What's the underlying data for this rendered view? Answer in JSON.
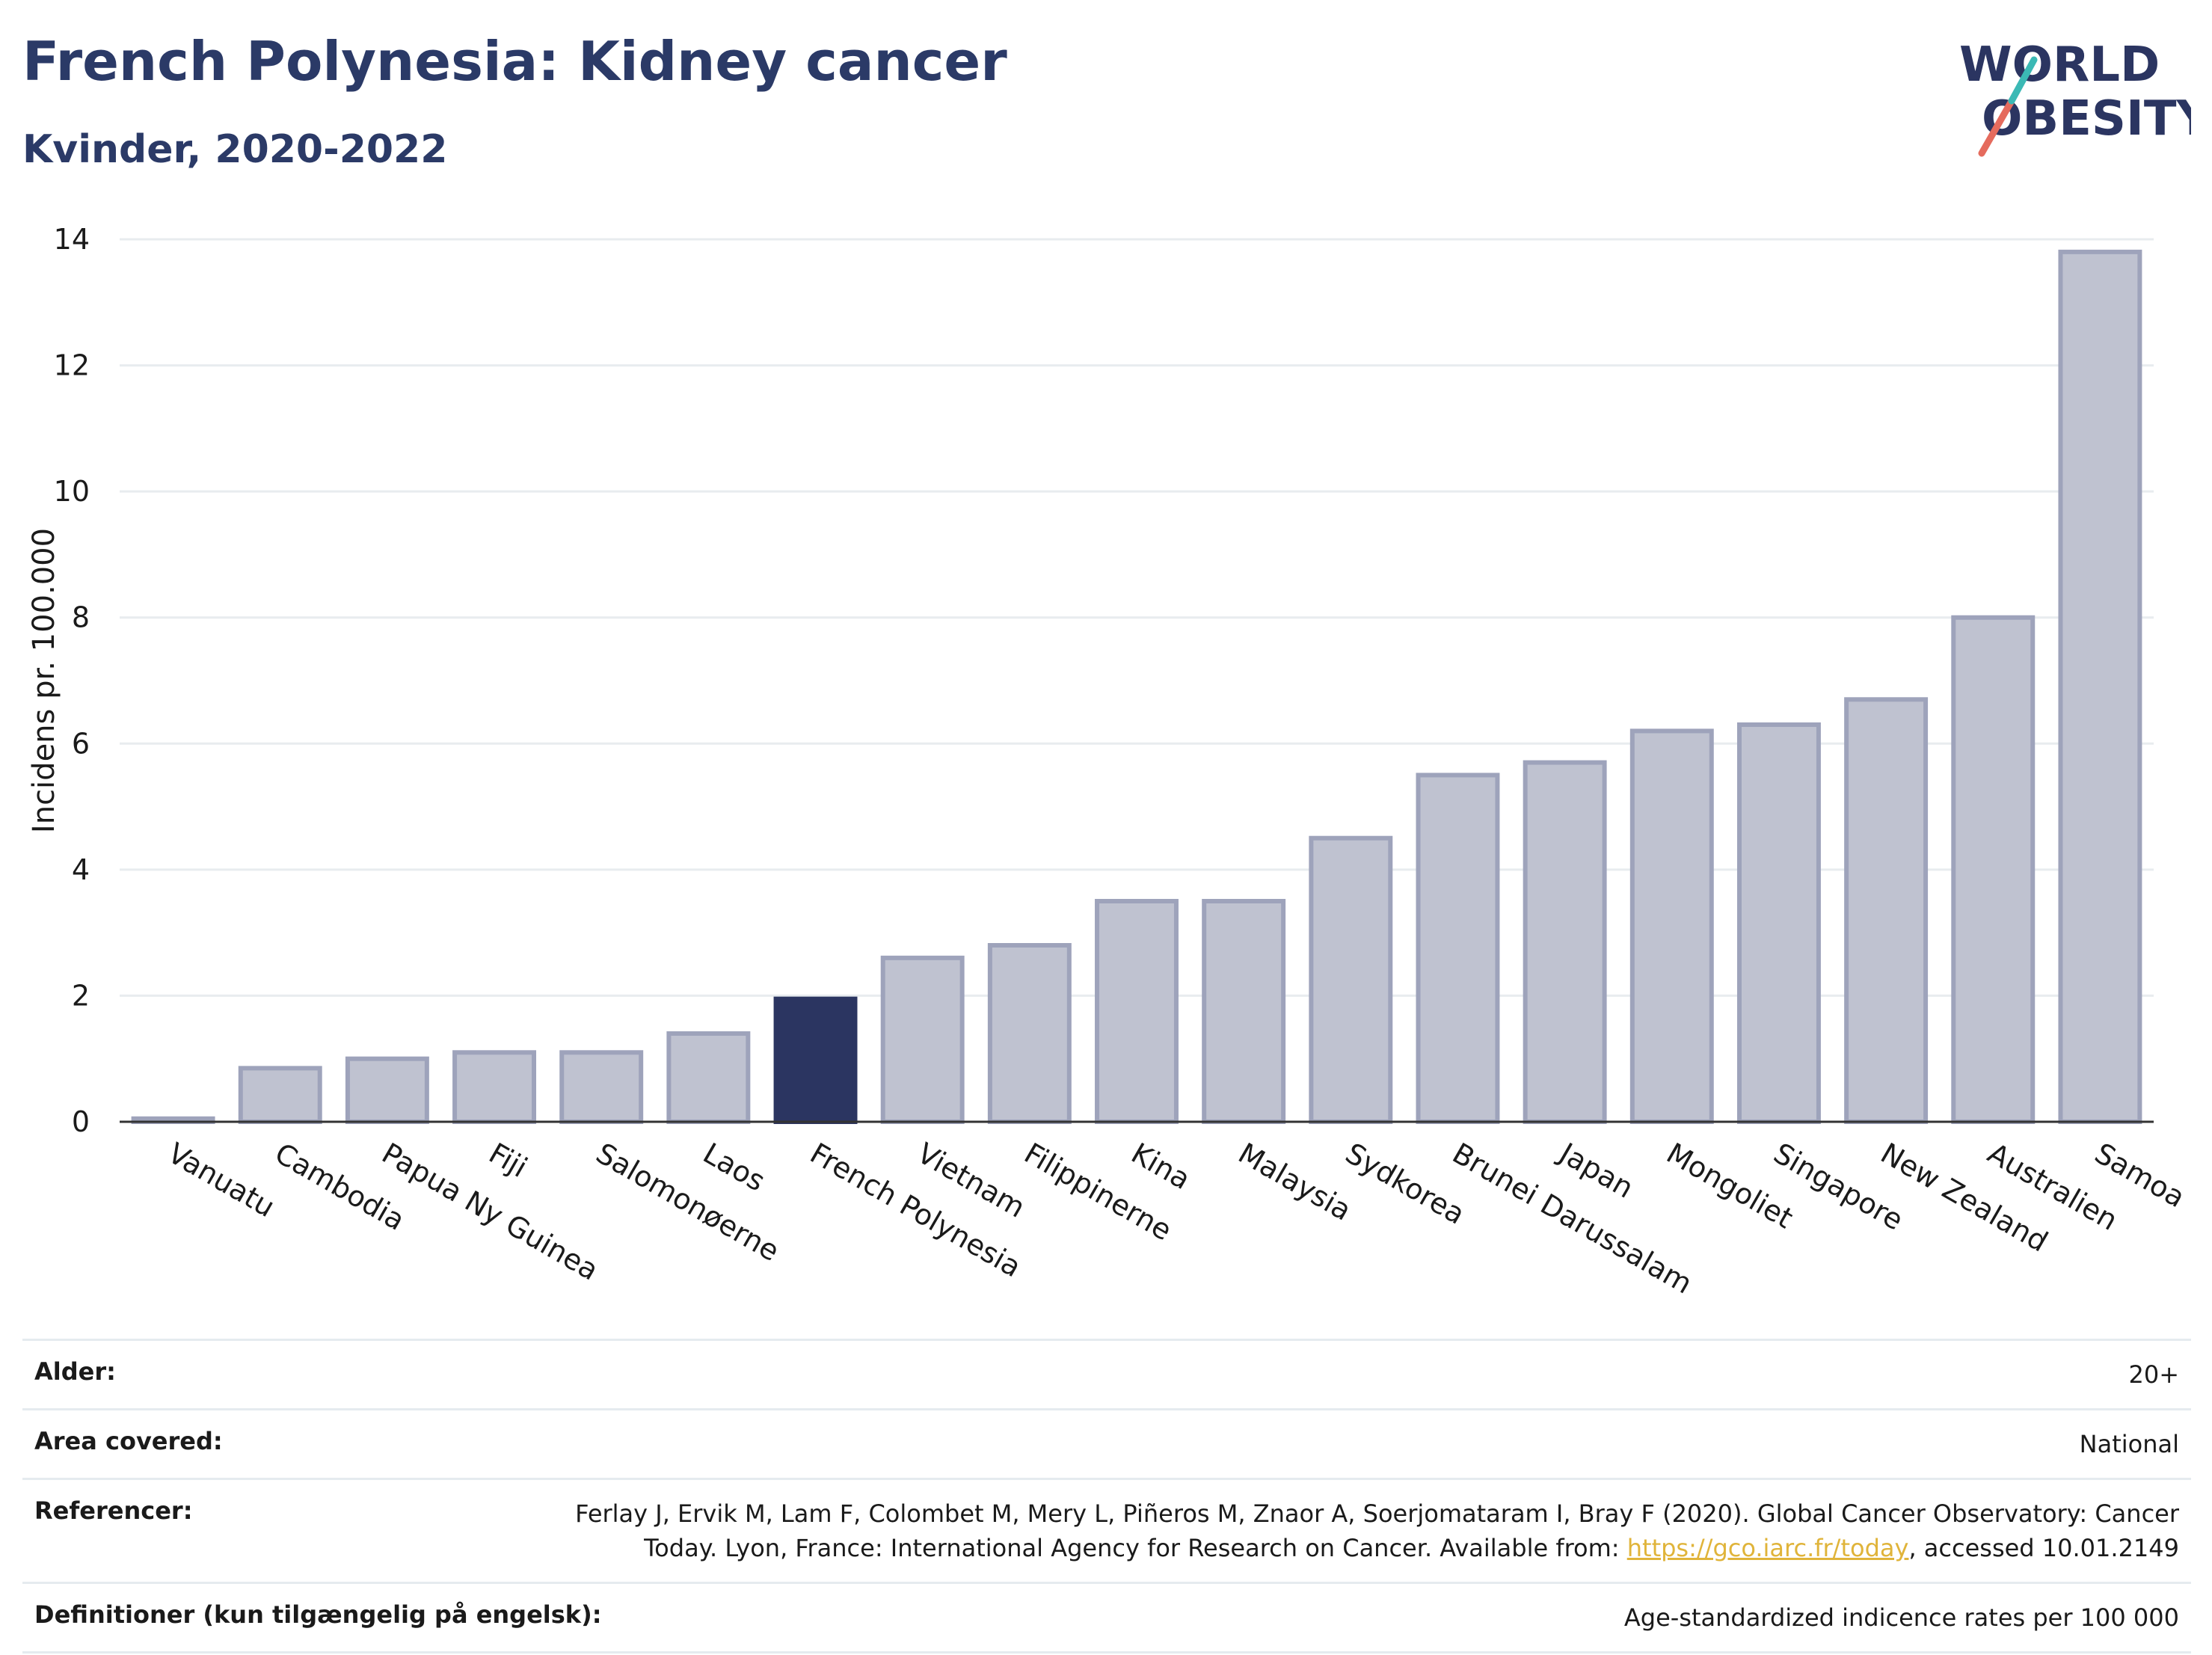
{
  "header": {
    "title": "French Polynesia: Kidney cancer",
    "subtitle": "Kvinder, 2020-2022"
  },
  "logo": {
    "line1": "WORLD",
    "line2": "OBESITY"
  },
  "chart_data": {
    "type": "bar",
    "ylabel": "Incidens pr. 100.000",
    "ylim": [
      0,
      14
    ],
    "yticks": [
      0,
      2,
      4,
      6,
      8,
      10,
      12,
      14
    ],
    "grid": true,
    "highlight": "French Polynesia",
    "categories": [
      "Vanuatu",
      "Cambodia",
      "Papua Ny Guinea",
      "Fiji",
      "Salomonøerne",
      "Laos",
      "French Polynesia",
      "Vietnam",
      "Filippinerne",
      "Kina",
      "Malaysia",
      "Sydkorea",
      "Brunei Darussalam",
      "Japan",
      "Mongoliet",
      "Singapore",
      "New Zealand",
      "Australien",
      "Samoa"
    ],
    "values": [
      0.05,
      0.85,
      1.0,
      1.1,
      1.1,
      1.4,
      1.95,
      2.6,
      2.8,
      3.5,
      3.5,
      4.5,
      5.5,
      5.7,
      6.2,
      6.3,
      6.7,
      8.0,
      13.8
    ],
    "colors": {
      "bar": "#bfc2d0",
      "bar_edge": "#9ea3bb",
      "highlight": "#2b3561"
    }
  },
  "info": {
    "rows": [
      {
        "label": "Alder:",
        "value": "20+"
      },
      {
        "label": "Area covered:",
        "value": "National"
      },
      {
        "label": "Referencer:",
        "value_pre": "Ferlay J, Ervik M, Lam F, Colombet M, Mery L, Piñeros M, Znaor A, Soerjomataram I, Bray F (2020). Global Cancer Observatory: Cancer Today. Lyon, France: International Agency for Research on Cancer. Available from: ",
        "link": "https://gco.iarc.fr/today",
        "value_post": ", accessed 10.01.2149"
      },
      {
        "label": "Definitioner (kun tilgængelig på engelsk):",
        "value": "Age-standardized indicence rates per 100 000"
      }
    ]
  }
}
